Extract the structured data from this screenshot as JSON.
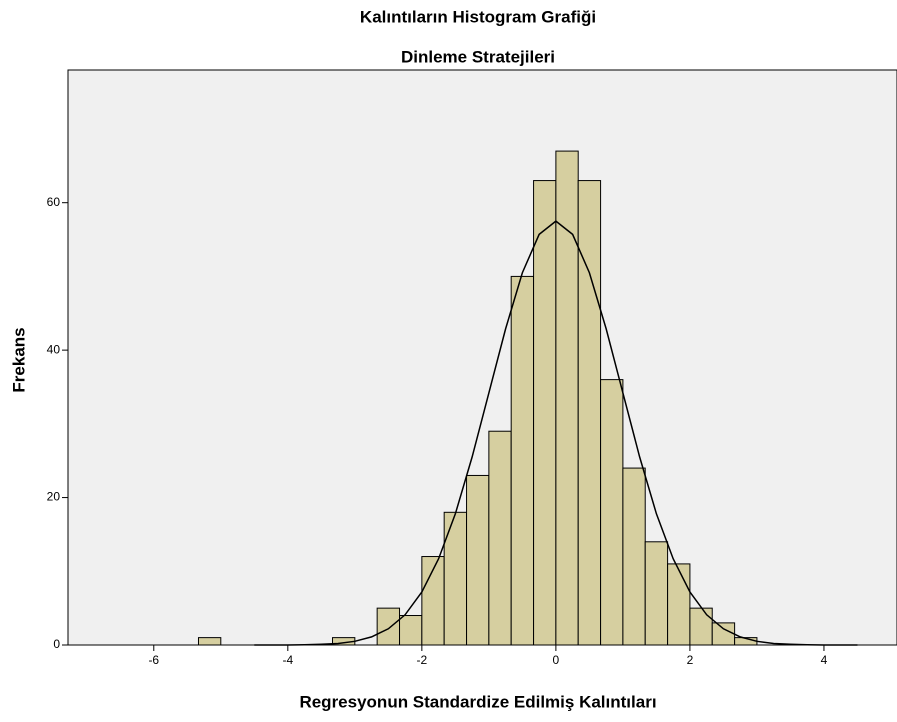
{
  "chart_data": {
    "type": "histogram",
    "title": "Kalıntıların Histogram Grafiği",
    "subtitle": "Dinleme Stratejileri",
    "x_label": "Regresyonun Standardize Edilmiş Kalıntıları",
    "y_label": "Frekans",
    "bins": [
      -5.333,
      -5,
      -4.667,
      -4.333,
      -4,
      -3.667,
      -3.333,
      -3,
      -2.667,
      -2.333,
      -2,
      -1.667,
      -1.333,
      -1,
      -0.667,
      -0.333,
      0,
      0.333,
      0.667,
      1,
      1.333,
      1.667,
      2,
      2.333,
      2.667,
      3
    ],
    "values": [
      1,
      0,
      0,
      0,
      0,
      0,
      1,
      0,
      5,
      4,
      12,
      18,
      23,
      29,
      50,
      63,
      67,
      63,
      36,
      24,
      14,
      11,
      5,
      3,
      1
    ],
    "color": "#d6cfa0",
    "curve": {
      "x": [
        -4.5,
        -4.25,
        -4,
        -3.75,
        -3.5,
        -3.25,
        -3,
        -2.75,
        -2.5,
        -2.25,
        -2,
        -1.75,
        -1.5,
        -1.25,
        -1,
        -0.75,
        -0.5,
        -0.25,
        0,
        0.25,
        0.5,
        0.75,
        1,
        1.25,
        1.5,
        1.75,
        2,
        2.25,
        2.5,
        2.75,
        3,
        3.25,
        3.5,
        3.75,
        4,
        4.25,
        4.5
      ],
      "values": [
        0,
        0,
        0,
        0.04,
        0.1,
        0.2,
        0.5,
        1.1,
        2.2,
        4.1,
        7.2,
        11.7,
        17.8,
        25.5,
        34.2,
        42.9,
        50.5,
        55.7,
        57.5,
        55.7,
        50.5,
        42.9,
        34.2,
        25.5,
        17.8,
        11.7,
        7.2,
        4.1,
        2.2,
        1.1,
        0.5,
        0.2,
        0.1,
        0.04,
        0,
        0,
        0
      ],
      "color": "#000000"
    },
    "xlim": [
      -7.28,
      5.09
    ],
    "xticks": [
      -6,
      -4,
      -2,
      0,
      2,
      4
    ],
    "ylim": [
      0,
      78
    ],
    "yticks": [
      0,
      20,
      40,
      60
    ]
  }
}
